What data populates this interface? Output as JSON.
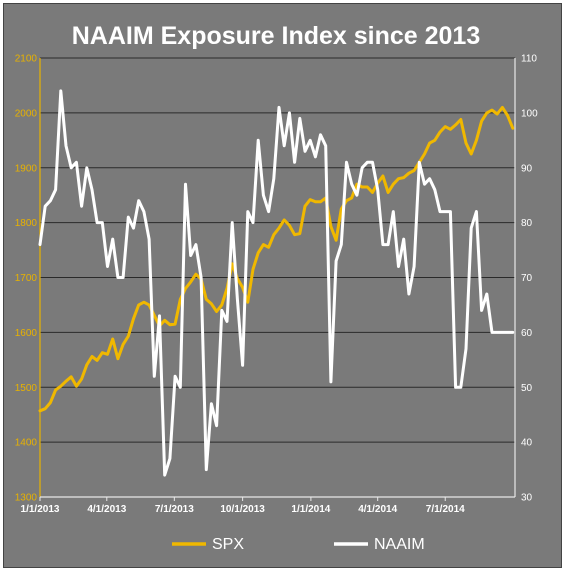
{
  "chart_data": {
    "type": "line",
    "title": "NAAIM Exposure Index since 2013",
    "x_ticks": [
      "1/1/2013",
      "4/1/2013",
      "7/1/2013",
      "10/1/2013",
      "1/1/2014",
      "4/1/2014",
      "7/1/2014"
    ],
    "x_range": [
      "2013-01-01",
      "2014-10-03"
    ],
    "y_left": {
      "ticks": [
        1300,
        1400,
        1500,
        1600,
        1700,
        1800,
        1900,
        2000,
        2100
      ],
      "range": [
        1300,
        2100
      ]
    },
    "y_right": {
      "ticks": [
        30,
        40,
        50,
        60,
        70,
        80,
        90,
        100,
        110
      ],
      "range": [
        30,
        110
      ]
    },
    "grid": true,
    "legend_position": "bottom",
    "colors": {
      "SPX": "#f0b800",
      "NAAIM": "#ffffff",
      "background": "#7a7a7a"
    },
    "series": [
      {
        "name": "SPX",
        "axis": "left",
        "x": [
          "2013-01-01",
          "2013-01-08",
          "2013-01-15",
          "2013-01-22",
          "2013-01-29",
          "2013-02-05",
          "2013-02-12",
          "2013-02-19",
          "2013-02-26",
          "2013-03-05",
          "2013-03-12",
          "2013-03-19",
          "2013-03-26",
          "2013-04-02",
          "2013-04-09",
          "2013-04-16",
          "2013-04-23",
          "2013-04-30",
          "2013-05-07",
          "2013-05-14",
          "2013-05-21",
          "2013-05-28",
          "2013-06-04",
          "2013-06-11",
          "2013-06-18",
          "2013-06-25",
          "2013-07-02",
          "2013-07-09",
          "2013-07-16",
          "2013-07-23",
          "2013-07-30",
          "2013-08-06",
          "2013-08-13",
          "2013-08-20",
          "2013-08-27",
          "2013-09-03",
          "2013-09-10",
          "2013-09-17",
          "2013-09-24",
          "2013-10-01",
          "2013-10-08",
          "2013-10-15",
          "2013-10-22",
          "2013-10-29",
          "2013-11-05",
          "2013-11-12",
          "2013-11-19",
          "2013-11-26",
          "2013-12-03",
          "2013-12-10",
          "2013-12-17",
          "2013-12-24",
          "2013-12-31",
          "2014-01-07",
          "2014-01-14",
          "2014-01-21",
          "2014-01-28",
          "2014-02-04",
          "2014-02-11",
          "2014-02-18",
          "2014-02-25",
          "2014-03-04",
          "2014-03-11",
          "2014-03-18",
          "2014-03-25",
          "2014-04-01",
          "2014-04-08",
          "2014-04-15",
          "2014-04-22",
          "2014-04-29",
          "2014-05-06",
          "2014-05-13",
          "2014-05-20",
          "2014-05-27",
          "2014-06-03",
          "2014-06-10",
          "2014-06-17",
          "2014-06-24",
          "2014-07-01",
          "2014-07-08",
          "2014-07-15",
          "2014-07-22",
          "2014-07-29",
          "2014-08-05",
          "2014-08-12",
          "2014-08-19",
          "2014-08-26",
          "2014-09-02",
          "2014-09-09",
          "2014-09-16",
          "2014-09-23",
          "2014-09-30"
        ],
        "values": [
          1457,
          1461,
          1472,
          1495,
          1502,
          1511,
          1519,
          1502,
          1515,
          1541,
          1556,
          1549,
          1563,
          1560,
          1588,
          1552,
          1578,
          1593,
          1625,
          1650,
          1655,
          1650,
          1631,
          1612,
          1622,
          1614,
          1615,
          1660,
          1680,
          1692,
          1706,
          1697,
          1660,
          1652,
          1638,
          1650,
          1680,
          1725,
          1698,
          1682,
          1655,
          1715,
          1745,
          1760,
          1755,
          1778,
          1790,
          1805,
          1795,
          1778,
          1780,
          1830,
          1842,
          1838,
          1838,
          1845,
          1793,
          1768,
          1825,
          1840,
          1845,
          1870,
          1865,
          1865,
          1855,
          1872,
          1885,
          1855,
          1870,
          1880,
          1882,
          1890,
          1895,
          1910,
          1925,
          1945,
          1950,
          1965,
          1975,
          1970,
          1978,
          1988,
          1945,
          1925,
          1950,
          1985,
          2000,
          2005,
          1998,
          2010,
          1995,
          1972
        ]
      },
      {
        "name": "NAAIM",
        "axis": "right",
        "x": [
          "2013-01-01",
          "2013-01-08",
          "2013-01-15",
          "2013-01-22",
          "2013-01-29",
          "2013-02-05",
          "2013-02-12",
          "2013-02-19",
          "2013-02-26",
          "2013-03-05",
          "2013-03-12",
          "2013-03-19",
          "2013-03-26",
          "2013-04-02",
          "2013-04-09",
          "2013-04-16",
          "2013-04-23",
          "2013-04-30",
          "2013-05-07",
          "2013-05-14",
          "2013-05-21",
          "2013-05-28",
          "2013-06-04",
          "2013-06-11",
          "2013-06-18",
          "2013-06-25",
          "2013-07-02",
          "2013-07-09",
          "2013-07-16",
          "2013-07-23",
          "2013-07-30",
          "2013-08-06",
          "2013-08-13",
          "2013-08-20",
          "2013-08-27",
          "2013-09-03",
          "2013-09-10",
          "2013-09-17",
          "2013-09-24",
          "2013-10-01",
          "2013-10-08",
          "2013-10-15",
          "2013-10-22",
          "2013-10-29",
          "2013-11-05",
          "2013-11-12",
          "2013-11-19",
          "2013-11-26",
          "2013-12-03",
          "2013-12-10",
          "2013-12-17",
          "2013-12-24",
          "2013-12-31",
          "2014-01-07",
          "2014-01-14",
          "2014-01-21",
          "2014-01-28",
          "2014-02-04",
          "2014-02-11",
          "2014-02-18",
          "2014-02-25",
          "2014-03-04",
          "2014-03-11",
          "2014-03-18",
          "2014-03-25",
          "2014-04-01",
          "2014-04-08",
          "2014-04-15",
          "2014-04-22",
          "2014-04-29",
          "2014-05-06",
          "2014-05-13",
          "2014-05-20",
          "2014-05-27",
          "2014-06-03",
          "2014-06-10",
          "2014-06-17",
          "2014-06-24",
          "2014-07-01",
          "2014-07-08",
          "2014-07-15",
          "2014-07-22",
          "2014-07-29",
          "2014-08-05",
          "2014-08-12",
          "2014-08-19",
          "2014-08-26",
          "2014-09-02",
          "2014-09-09",
          "2014-09-16",
          "2014-09-23",
          "2014-09-30"
        ],
        "values": [
          76,
          83,
          84,
          86,
          104,
          94,
          90,
          91,
          83,
          90,
          86,
          80,
          80,
          72,
          77,
          70,
          70,
          81,
          79,
          84,
          82,
          77,
          52,
          63,
          34,
          37,
          52,
          50,
          87,
          74,
          76,
          70,
          35,
          47,
          43,
          64,
          62,
          80,
          66,
          54,
          82,
          80,
          95,
          85,
          82,
          88,
          101,
          94,
          100,
          91,
          99,
          93,
          95,
          92,
          96,
          94,
          51,
          73,
          76,
          91,
          87,
          85,
          90,
          91,
          91,
          86,
          76,
          76,
          82,
          72,
          77,
          67,
          72,
          91,
          87,
          88,
          86,
          82,
          82,
          82,
          50,
          50,
          57,
          79,
          82,
          64,
          67,
          60,
          60,
          60,
          60,
          60
        ]
      }
    ]
  }
}
